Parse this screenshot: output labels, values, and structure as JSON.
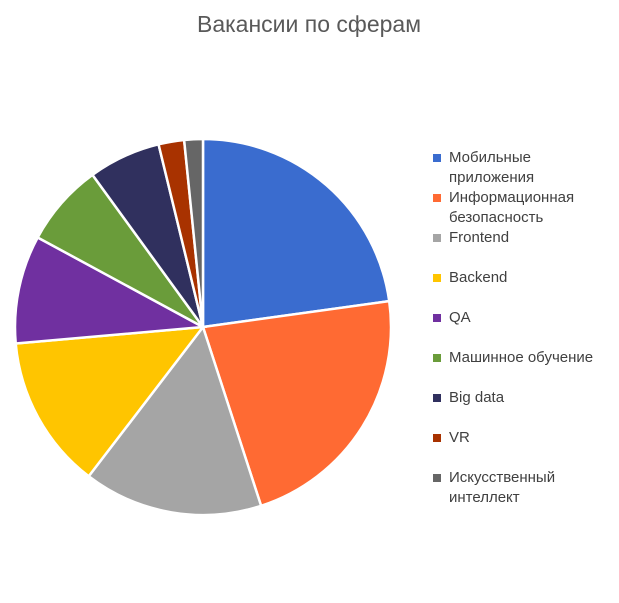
{
  "chart_data": {
    "type": "pie",
    "title": "Вакансии по сферам",
    "categories": [
      "Мобильные приложения",
      "Информационная безопасность",
      "Frontend",
      "Backend",
      "QA",
      "Машинное обучение",
      "Big data",
      "VR",
      "Искусственный интеллект"
    ],
    "values": [
      22.8,
      22.2,
      15.4,
      13.2,
      9.3,
      7.1,
      6.2,
      2.2,
      1.6
    ],
    "colors": [
      "#3a6ccf",
      "#ff6a33",
      "#a5a5a5",
      "#ffc500",
      "#7030a0",
      "#6a9c3a",
      "#30305e",
      "#a83200",
      "#666666"
    ],
    "legend": "right"
  }
}
